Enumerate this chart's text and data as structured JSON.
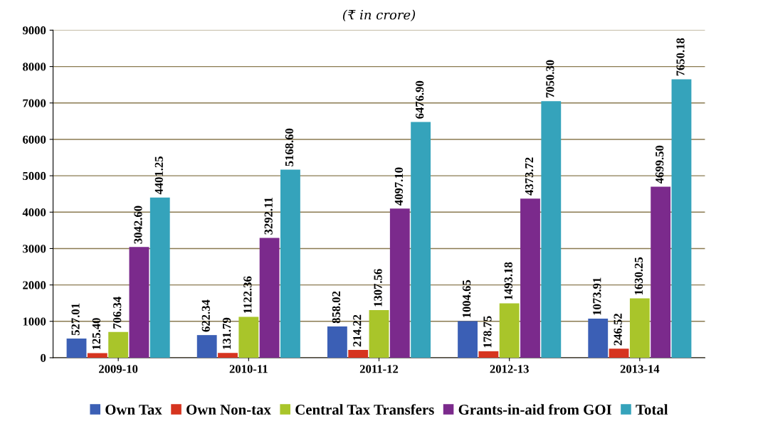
{
  "chart_data": {
    "type": "bar",
    "subtitle": "(₹ in crore)",
    "categories": [
      "2009-10",
      "2010-11",
      "2011-12",
      "2012-13",
      "2013-14"
    ],
    "series": [
      {
        "name": "Own Tax",
        "color": "#3b5fb5",
        "values": [
          527.01,
          622.34,
          858.02,
          1004.65,
          1073.91
        ],
        "value_labels": [
          "527.01",
          "622.34",
          "858.02",
          "1004.65",
          "1073.91"
        ]
      },
      {
        "name": "Own Non-tax",
        "color": "#d6341f",
        "values": [
          125.4,
          131.79,
          214.22,
          178.75,
          246.52
        ],
        "value_labels": [
          "125.40",
          "131.79",
          "214.22",
          "178.75",
          "246.52"
        ]
      },
      {
        "name": "Central Tax Transfers",
        "color": "#a9c52a",
        "values": [
          706.34,
          1122.36,
          1307.56,
          1493.18,
          1630.25
        ],
        "value_labels": [
          "706.34",
          "1122.36",
          "1307.56",
          "1493.18",
          "1630.25"
        ]
      },
      {
        "name": "Grants-in-aid from GOI",
        "color": "#7b2a8c",
        "values": [
          3042.6,
          3292.11,
          4097.1,
          4373.72,
          4699.5
        ],
        "value_labels": [
          "3042.60",
          "3292.11",
          "4097.10",
          "4373.72",
          "4699.50"
        ]
      },
      {
        "name": "Total",
        "color": "#35a3bb",
        "values": [
          4401.25,
          5168.6,
          6476.9,
          7050.3,
          7650.18
        ],
        "value_labels": [
          "4401.25",
          "5168.60",
          "6476.90",
          "7050.30",
          "7650.18"
        ]
      }
    ],
    "ylim": [
      0,
      9000
    ],
    "yticks": [
      0,
      1000,
      2000,
      3000,
      4000,
      5000,
      6000,
      7000,
      8000,
      9000
    ],
    "grid": "y",
    "legend": "bottom"
  }
}
